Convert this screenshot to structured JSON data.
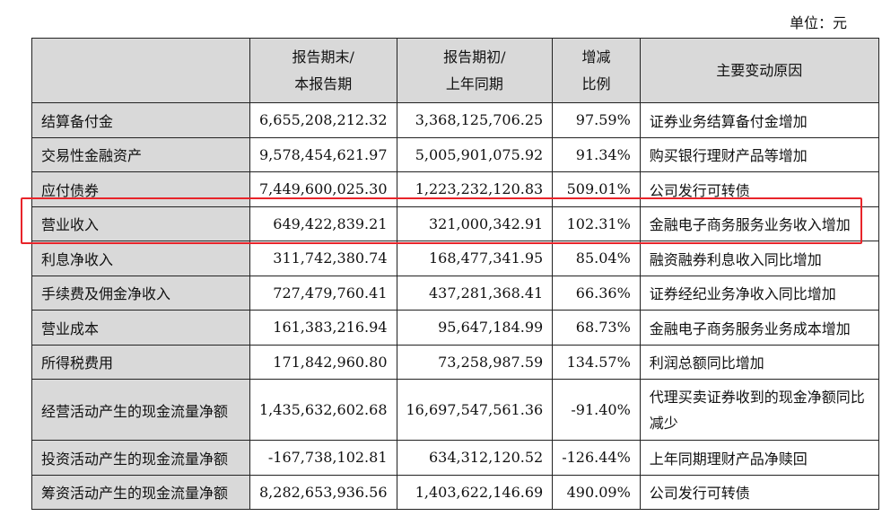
{
  "unit_label": "单位：元",
  "headers": {
    "col1_line1": "报告期末/",
    "col1_line2": "本报告期",
    "col2_line1": "报告期初/",
    "col2_line2": "上年同期",
    "col3_line1": "增减",
    "col3_line2": "比例",
    "col4": "主要变动原因"
  },
  "rows": [
    {
      "item": "结算备付金",
      "current": "6,655,208,212.32",
      "prior": "3,368,125,706.25",
      "change": "97.59%",
      "reason": "证券业务结算备付金增加"
    },
    {
      "item": "交易性金融资产",
      "current": "9,578,454,621.97",
      "prior": "5,005,901,075.92",
      "change": "91.34%",
      "reason": "购买银行理财产品等增加"
    },
    {
      "item": "应付债券",
      "current": "7,449,600,025.30",
      "prior": "1,223,232,120.83",
      "change": "509.01%",
      "reason": "公司发行可转债"
    },
    {
      "item": "营业收入",
      "current": "649,422,839.21",
      "prior": "321,000,342.91",
      "change": "102.31%",
      "reason": "金融电子商务服务业务收入增加"
    },
    {
      "item": "利息净收入",
      "current": "311,742,380.74",
      "prior": "168,477,341.95",
      "change": "85.04%",
      "reason": "融资融券利息收入同比增加"
    },
    {
      "item": "手续费及佣金净收入",
      "current": "727,479,760.41",
      "prior": "437,281,368.41",
      "change": "66.36%",
      "reason": "证券经纪业务净收入同比增加"
    },
    {
      "item": "营业成本",
      "current": "161,383,216.94",
      "prior": "95,647,184.99",
      "change": "68.73%",
      "reason": "金融电子商务服务业务成本增加"
    },
    {
      "item": "所得税费用",
      "current": "171,842,960.80",
      "prior": "73,258,987.59",
      "change": "134.57%",
      "reason": "利润总额同比增加"
    },
    {
      "item": "经营活动产生的现金流量净额",
      "current": "1,435,632,602.68",
      "prior": "16,697,547,561.36",
      "change": "-91.40%",
      "reason": "代理买卖证券收到的现金净额同比减少"
    },
    {
      "item": "投资活动产生的现金流量净额",
      "current": "-167,738,102.81",
      "prior": "634,312,120.52",
      "change": "-126.44%",
      "reason": "上年同期理财产品净赎回"
    },
    {
      "item": "筹资活动产生的现金流量净额",
      "current": "8,282,653,936.56",
      "prior": "1,403,622,146.69",
      "change": "490.09%",
      "reason": "公司发行可转债"
    }
  ],
  "highlight_color": "#e8242a"
}
